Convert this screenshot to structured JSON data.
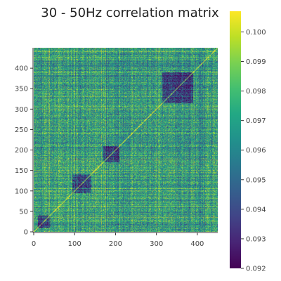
{
  "chart_data": {
    "type": "heatmap",
    "title": "30 - 50Hz correlation matrix",
    "xlabel": "",
    "ylabel": "",
    "matrix_size": 450,
    "x_ticks": [
      0,
      100,
      200,
      300,
      400
    ],
    "y_ticks": [
      0,
      50,
      100,
      150,
      200,
      250,
      300,
      350,
      400
    ],
    "xlim": [
      0,
      450
    ],
    "ylim": [
      0,
      450
    ],
    "y_origin": "bottom",
    "grid": false,
    "colormap": "viridis",
    "colorbar": {
      "min": 0.092,
      "max": 0.1007,
      "ticks": [
        "0.092",
        "0.093",
        "0.094",
        "0.095",
        "0.096",
        "0.097",
        "0.098",
        "0.099",
        "0.100"
      ],
      "position": "right"
    },
    "diagonal_value": 0.1007,
    "typical_range": [
      0.094,
      0.099
    ],
    "colors": {
      "viridis_low": "#440154",
      "viridis_mid": "#21918c",
      "viridis_high": "#fde725"
    }
  }
}
